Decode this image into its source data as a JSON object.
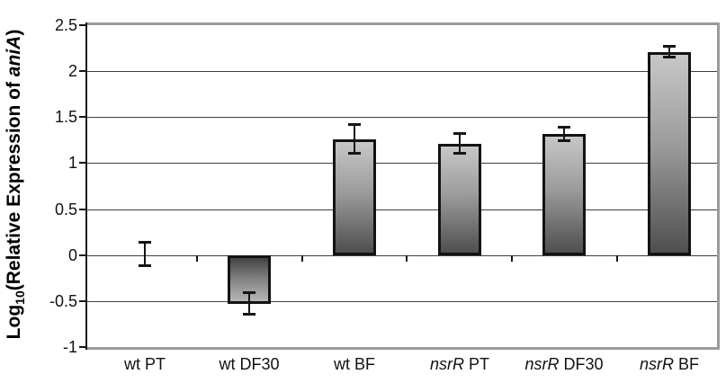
{
  "chart_data": {
    "type": "bar",
    "title": "",
    "ylabel_parts": [
      {
        "text": "Log"
      },
      {
        "text": "10",
        "subscript": true
      },
      {
        "text": "(Relative Expression of "
      },
      {
        "text": "aniA",
        "italic": true
      },
      {
        "text": ")"
      }
    ],
    "categories": [
      {
        "italic": "",
        "plain": "wt PT"
      },
      {
        "italic": "",
        "plain": "wt DF30"
      },
      {
        "italic": "",
        "plain": "wt BF"
      },
      {
        "italic": "nsrR",
        "plain": " PT"
      },
      {
        "italic": "nsrR",
        "plain": " DF30"
      },
      {
        "italic": "nsrR",
        "plain": " BF"
      }
    ],
    "values": [
      0.01,
      -0.53,
      1.26,
      1.21,
      1.32,
      2.21
    ],
    "error_high": [
      0.14,
      -0.4,
      1.42,
      1.33,
      1.4,
      2.28
    ],
    "error_low": [
      -0.12,
      -0.65,
      1.1,
      1.1,
      1.24,
      2.15
    ],
    "yticks": [
      2.5,
      2,
      1.5,
      1,
      0.5,
      0,
      -0.5,
      -1
    ],
    "ylim": [
      -1,
      2.5
    ],
    "grid": true,
    "error_bars": true,
    "legend": null,
    "xlabel": "",
    "colors": {
      "bar_gradient_light": "#c7c7c7",
      "bar_gradient_dark": "#4f4f4f",
      "bar_border": "#131313",
      "gridline": "#3f3f3f",
      "plot_border": "#9a9a9a",
      "axis_line": "#151515",
      "text": "#111111",
      "background": "#ffffff"
    }
  }
}
